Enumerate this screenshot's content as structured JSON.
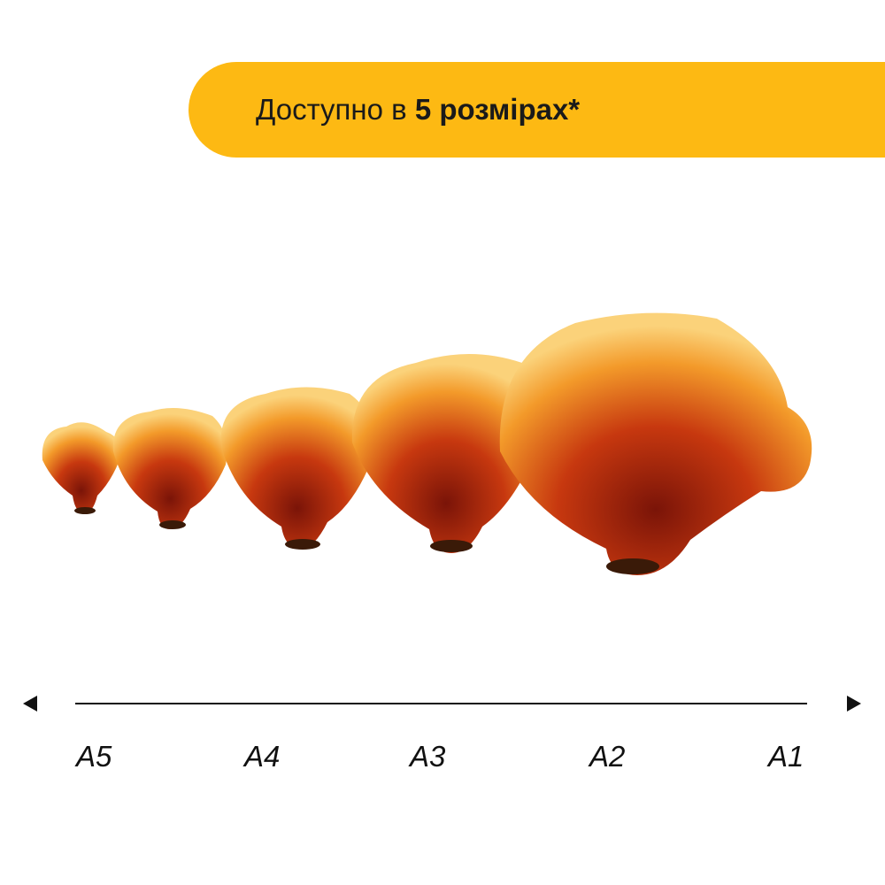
{
  "banner": {
    "text_prefix": "Доступно в ",
    "text_bold": "5 розмірах*",
    "color": "#fdb913"
  },
  "image": {
    "subject": "coral-mushroom-puzzle"
  },
  "scale": {
    "labels": [
      "A5",
      "A4",
      "A3",
      "A2",
      "A1"
    ]
  }
}
